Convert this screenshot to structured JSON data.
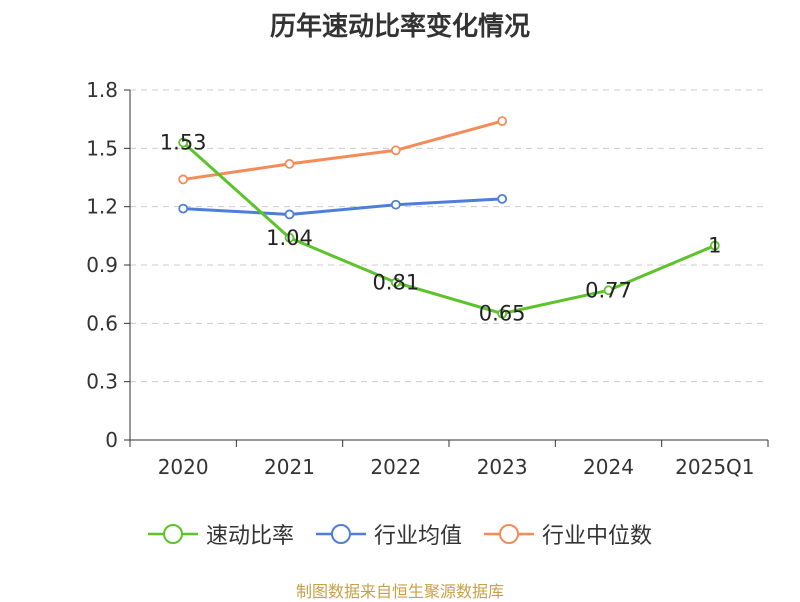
{
  "title": "历年速动比率变化情况",
  "source": "制图数据来自恒生聚源数据库",
  "chart_data": {
    "type": "line",
    "categories": [
      "2020",
      "2021",
      "2022",
      "2023",
      "2024",
      "2025Q1"
    ],
    "ylim": [
      0,
      1.8
    ],
    "yticks": [
      "0",
      "0.3",
      "0.6",
      "0.9",
      "1.2",
      "1.5",
      "1.8"
    ],
    "grid": true,
    "legend_position": "bottom",
    "series": [
      {
        "name": "速动比率",
        "color": "#5cc32b",
        "values": [
          1.53,
          1.04,
          0.81,
          0.65,
          0.77,
          1.0
        ],
        "labels": [
          "1.53",
          "1.04",
          "0.81",
          "0.65",
          "0.77",
          "1"
        ]
      },
      {
        "name": "行业均值",
        "color": "#4d7fd9",
        "values": [
          1.19,
          1.16,
          1.21,
          1.24,
          null,
          null
        ]
      },
      {
        "name": "行业中位数",
        "color": "#f48c5a",
        "values": [
          1.34,
          1.42,
          1.49,
          1.64,
          null,
          null
        ]
      }
    ]
  }
}
